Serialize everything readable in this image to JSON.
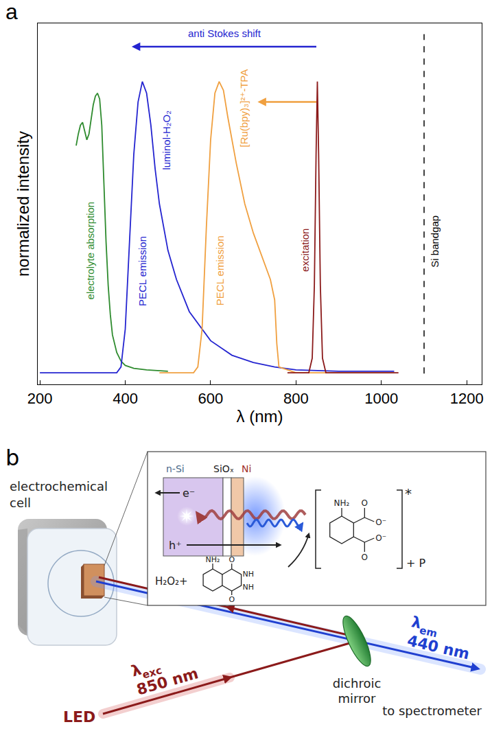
{
  "chart_data": {
    "type": "line",
    "panel_label": "a",
    "x_label": "λ (nm)",
    "y_label": "normalized intensity",
    "xlim": [
      195,
      1235
    ],
    "xticks": [
      200,
      400,
      600,
      800,
      1000,
      1200
    ],
    "ylim": [
      -0.04,
      1.2
    ],
    "yticks": [],
    "tick_labels": "x",
    "grid": false,
    "series": [
      {
        "name": "electrolyte absorption",
        "color": "#2e8b2e",
        "x": [
          285,
          290,
          295,
          300,
          305,
          310,
          315,
          320,
          325,
          330,
          335,
          340,
          345,
          350,
          355,
          360,
          365,
          370,
          380,
          390,
          400,
          420,
          450,
          500
        ],
        "values": [
          0.78,
          0.82,
          0.85,
          0.86,
          0.83,
          0.8,
          0.82,
          0.87,
          0.92,
          0.95,
          0.96,
          0.94,
          0.85,
          0.65,
          0.45,
          0.3,
          0.2,
          0.13,
          0.07,
          0.04,
          0.025,
          0.015,
          0.01,
          0.005
        ]
      },
      {
        "name": "luminol-H₂O₂",
        "annotation": "PECL emission",
        "color": "#2424d0",
        "x": [
          200,
          380,
          390,
          400,
          410,
          420,
          430,
          440,
          450,
          460,
          470,
          480,
          500,
          520,
          550,
          600,
          650,
          700,
          750,
          800,
          900,
          1030
        ],
        "values": [
          0,
          0,
          0.02,
          0.15,
          0.45,
          0.75,
          0.93,
          1.0,
          0.96,
          0.85,
          0.7,
          0.58,
          0.42,
          0.32,
          0.21,
          0.11,
          0.06,
          0.035,
          0.02,
          0.01,
          0.005,
          0.005
        ]
      },
      {
        "name": "[Ru(bpy)₃]²⁺-TPA",
        "annotation": "PECL emission",
        "color": "#f0a040",
        "x": [
          480,
          560,
          570,
          580,
          590,
          600,
          610,
          620,
          630,
          640,
          660,
          680,
          700,
          720,
          740,
          750,
          755,
          760,
          800,
          1030
        ],
        "values": [
          0,
          0,
          0.02,
          0.15,
          0.5,
          0.8,
          0.96,
          1.0,
          0.97,
          0.88,
          0.72,
          0.58,
          0.48,
          0.4,
          0.32,
          0.25,
          0.1,
          0.02,
          0,
          0
        ]
      },
      {
        "name": "excitation",
        "color": "#8b1a1a",
        "x": [
          780,
          830,
          838,
          843,
          847,
          850,
          853,
          857,
          862,
          870,
          1040
        ],
        "values": [
          0,
          0,
          0.05,
          0.3,
          0.75,
          1.0,
          0.75,
          0.3,
          0.05,
          0,
          0
        ]
      }
    ],
    "vlines": [
      {
        "x": 1100,
        "text": "Si bandgap",
        "color": "#000000",
        "line_style": "dashed"
      }
    ],
    "arrows": [
      {
        "text": "anti Stokes shift",
        "from": 850,
        "to": 415,
        "color": "#2424d0"
      },
      {
        "from": 850,
        "to": 710,
        "color": "#f0a040"
      }
    ]
  },
  "diagram": {
    "panel_label": "b",
    "cell_label": "electrochemical cell",
    "excitation": {
      "symbol": "λ",
      "subscript": "exc",
      "wavelength": "850 nm",
      "source": "LED"
    },
    "emission": {
      "symbol": "λ",
      "subscript": "em",
      "wavelength": "440 nm",
      "destination": "to spectrometer"
    },
    "mirror_label": "dichroic mirror",
    "inset": {
      "layers": [
        "n-Si",
        "SiOₓ",
        "Ni"
      ],
      "electron": "e⁻",
      "hole": "h⁺",
      "reactant": "H₂O₂+",
      "luminol_groups": [
        "NH₂",
        "O",
        "NH",
        "NH",
        "O"
      ],
      "product_groups": [
        "NH₂",
        "O",
        "O⁻",
        "O",
        "O⁻"
      ],
      "excited_mark": "*",
      "byproduct": "+ P"
    }
  }
}
